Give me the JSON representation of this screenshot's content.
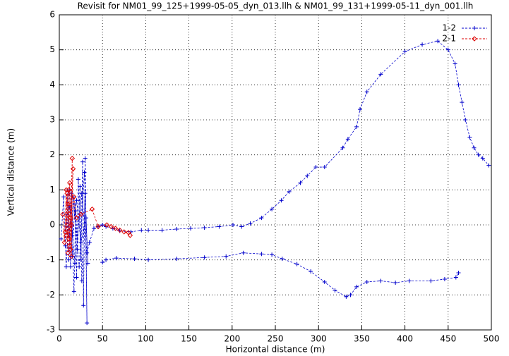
{
  "chart_data": {
    "type": "line",
    "title": "Revisit for NM01_99_125+1999-05-05_dyn_013.llh & NM01_99_131+1999-05-11_dyn_001.llh",
    "x_label": "Horizontal distance (m)",
    "y_label": "Vertical distance (m)",
    "xlim": [
      0,
      500
    ],
    "ylim": [
      -3,
      6
    ],
    "xticks": [
      0,
      50,
      100,
      150,
      200,
      250,
      300,
      350,
      400,
      450,
      500
    ],
    "yticks": [
      -3,
      -2,
      -1,
      0,
      1,
      2,
      3,
      4,
      5,
      6
    ],
    "grid": true,
    "legend": "top-right",
    "series": [
      {
        "name": "1-2",
        "color": "#0000cc",
        "marker": "plus",
        "x": [
          2,
          5,
          8,
          12,
          15,
          18,
          20,
          22,
          25,
          27,
          28,
          30,
          32,
          30,
          26,
          24,
          21,
          19,
          17,
          14,
          11,
          9,
          7,
          10,
          13,
          16,
          23,
          29,
          33,
          31,
          25,
          20,
          15,
          12,
          18,
          26,
          32,
          35,
          40,
          45,
          50,
          54,
          62,
          70,
          83,
          95,
          103,
          119,
          136,
          152,
          168,
          185,
          201,
          211,
          221,
          234,
          246,
          257,
          266,
          279,
          287,
          297,
          307,
          328,
          334,
          344,
          348,
          356,
          372,
          400,
          420,
          438,
          450,
          458,
          462,
          466,
          470,
          475,
          480,
          485,
          490,
          497,
          null,
          50,
          54,
          66,
          87,
          103,
          136,
          168,
          193,
          213,
          234,
          246,
          258,
          275,
          291,
          307,
          319,
          332,
          337,
          344,
          356,
          372,
          389,
          405,
          430,
          446,
          459,
          462
        ],
        "values": [
          -0.4,
          0.8,
          -1.2,
          1.0,
          -0.9,
          0.6,
          -1.5,
          1.3,
          -1.0,
          1.8,
          -2.3,
          1.9,
          -2.8,
          0.9,
          -1.6,
          1.1,
          -0.7,
          0.4,
          -1.9,
          0.9,
          -1.0,
          0.3,
          -0.6,
          1.0,
          -1.2,
          0.8,
          -1.2,
          1.5,
          -1.1,
          0.2,
          -0.5,
          0.7,
          -0.3,
          0.5,
          -1.1,
          0.9,
          -0.8,
          -0.5,
          -0.1,
          -0.05,
          0,
          -0.05,
          -0.1,
          -0.17,
          -0.2,
          -0.15,
          -0.15,
          -0.15,
          -0.12,
          -0.1,
          -0.08,
          -0.05,
          0,
          -0.05,
          0.04,
          0.2,
          0.45,
          0.7,
          0.95,
          1.2,
          1.4,
          1.65,
          1.65,
          2.2,
          2.45,
          2.8,
          3.3,
          3.8,
          4.3,
          4.95,
          5.15,
          5.25,
          5.0,
          4.6,
          4.0,
          3.5,
          3.0,
          2.5,
          2.2,
          2.0,
          1.9,
          1.7,
          null,
          -1.07,
          -1.0,
          -0.95,
          -0.97,
          -1.0,
          -0.97,
          -0.93,
          -0.9,
          -0.8,
          -0.83,
          -0.85,
          -0.97,
          -1.12,
          -1.33,
          -1.63,
          -1.87,
          -2.05,
          -2.0,
          -1.77,
          -1.63,
          -1.6,
          -1.65,
          -1.6,
          -1.6,
          -1.55,
          -1.5,
          -1.37
        ]
      },
      {
        "name": "2-1",
        "color": "#dd0000",
        "marker": "diamond",
        "x": [
          4,
          6,
          8,
          10,
          12,
          14,
          15,
          13,
          11,
          9,
          7,
          10,
          12,
          16,
          14,
          8,
          11,
          13,
          17,
          20,
          25,
          38,
          45,
          55,
          60,
          65,
          70,
          75,
          80,
          82
        ],
        "values": [
          0.3,
          -0.5,
          1.0,
          -0.8,
          1.2,
          -0.9,
          1.9,
          0.2,
          -0.4,
          0.9,
          -0.2,
          0.6,
          -0.6,
          1.6,
          0.0,
          -0.3,
          1.0,
          -0.7,
          0.8,
          0.2,
          0.3,
          0.45,
          -0.05,
          0,
          -0.05,
          -0.1,
          -0.15,
          -0.2,
          -0.22,
          -0.3
        ]
      }
    ]
  }
}
